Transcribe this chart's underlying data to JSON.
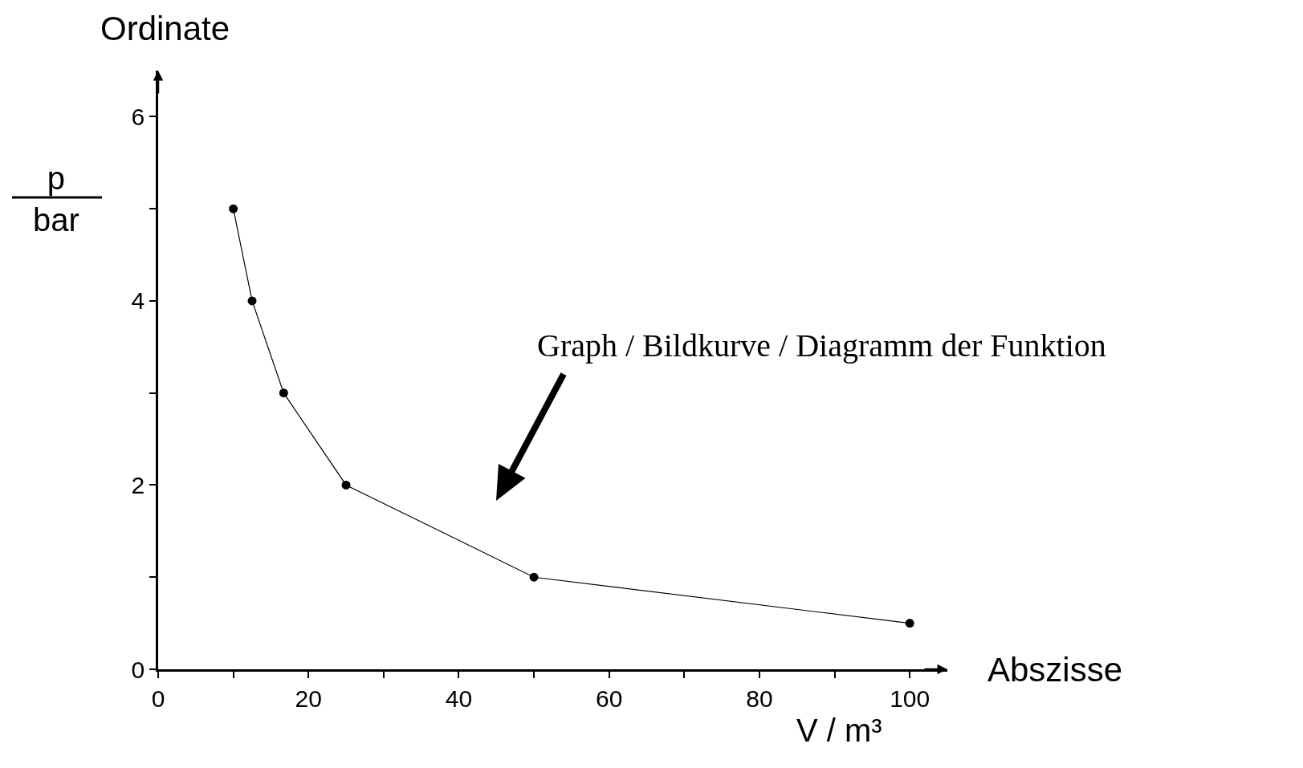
{
  "chart_data": {
    "type": "line",
    "x": [
      10,
      12.5,
      16.7,
      25,
      50,
      100
    ],
    "series": [
      {
        "color": "#000000",
        "values": [
          5,
          4,
          3,
          2,
          1,
          0.5
        ]
      }
    ],
    "xlabel": "V / m³",
    "ylabel": "p\nbar",
    "annotations": [
      "Ordinate",
      "Abszisse",
      "Graph / Bildkurve / Diagramm der Funktion"
    ],
    "xlim": [
      0,
      105
    ],
    "ylim": [
      0,
      6.5
    ],
    "xticks": [
      0,
      {
        "value": 10,
        "label": null
      },
      20,
      {
        "value": 30,
        "label": null
      },
      40,
      {
        "value": 50,
        "label": null
      },
      60,
      {
        "value": 70,
        "label": null
      },
      80,
      {
        "value": 90,
        "label": null
      },
      100
    ],
    "yticks": [
      0,
      {
        "value": 1,
        "label": null
      },
      2,
      {
        "value": 3,
        "label": null
      },
      4,
      {
        "value": 5,
        "label": null
      },
      6
    ],
    "marker": "circle",
    "line_style": "solid"
  }
}
